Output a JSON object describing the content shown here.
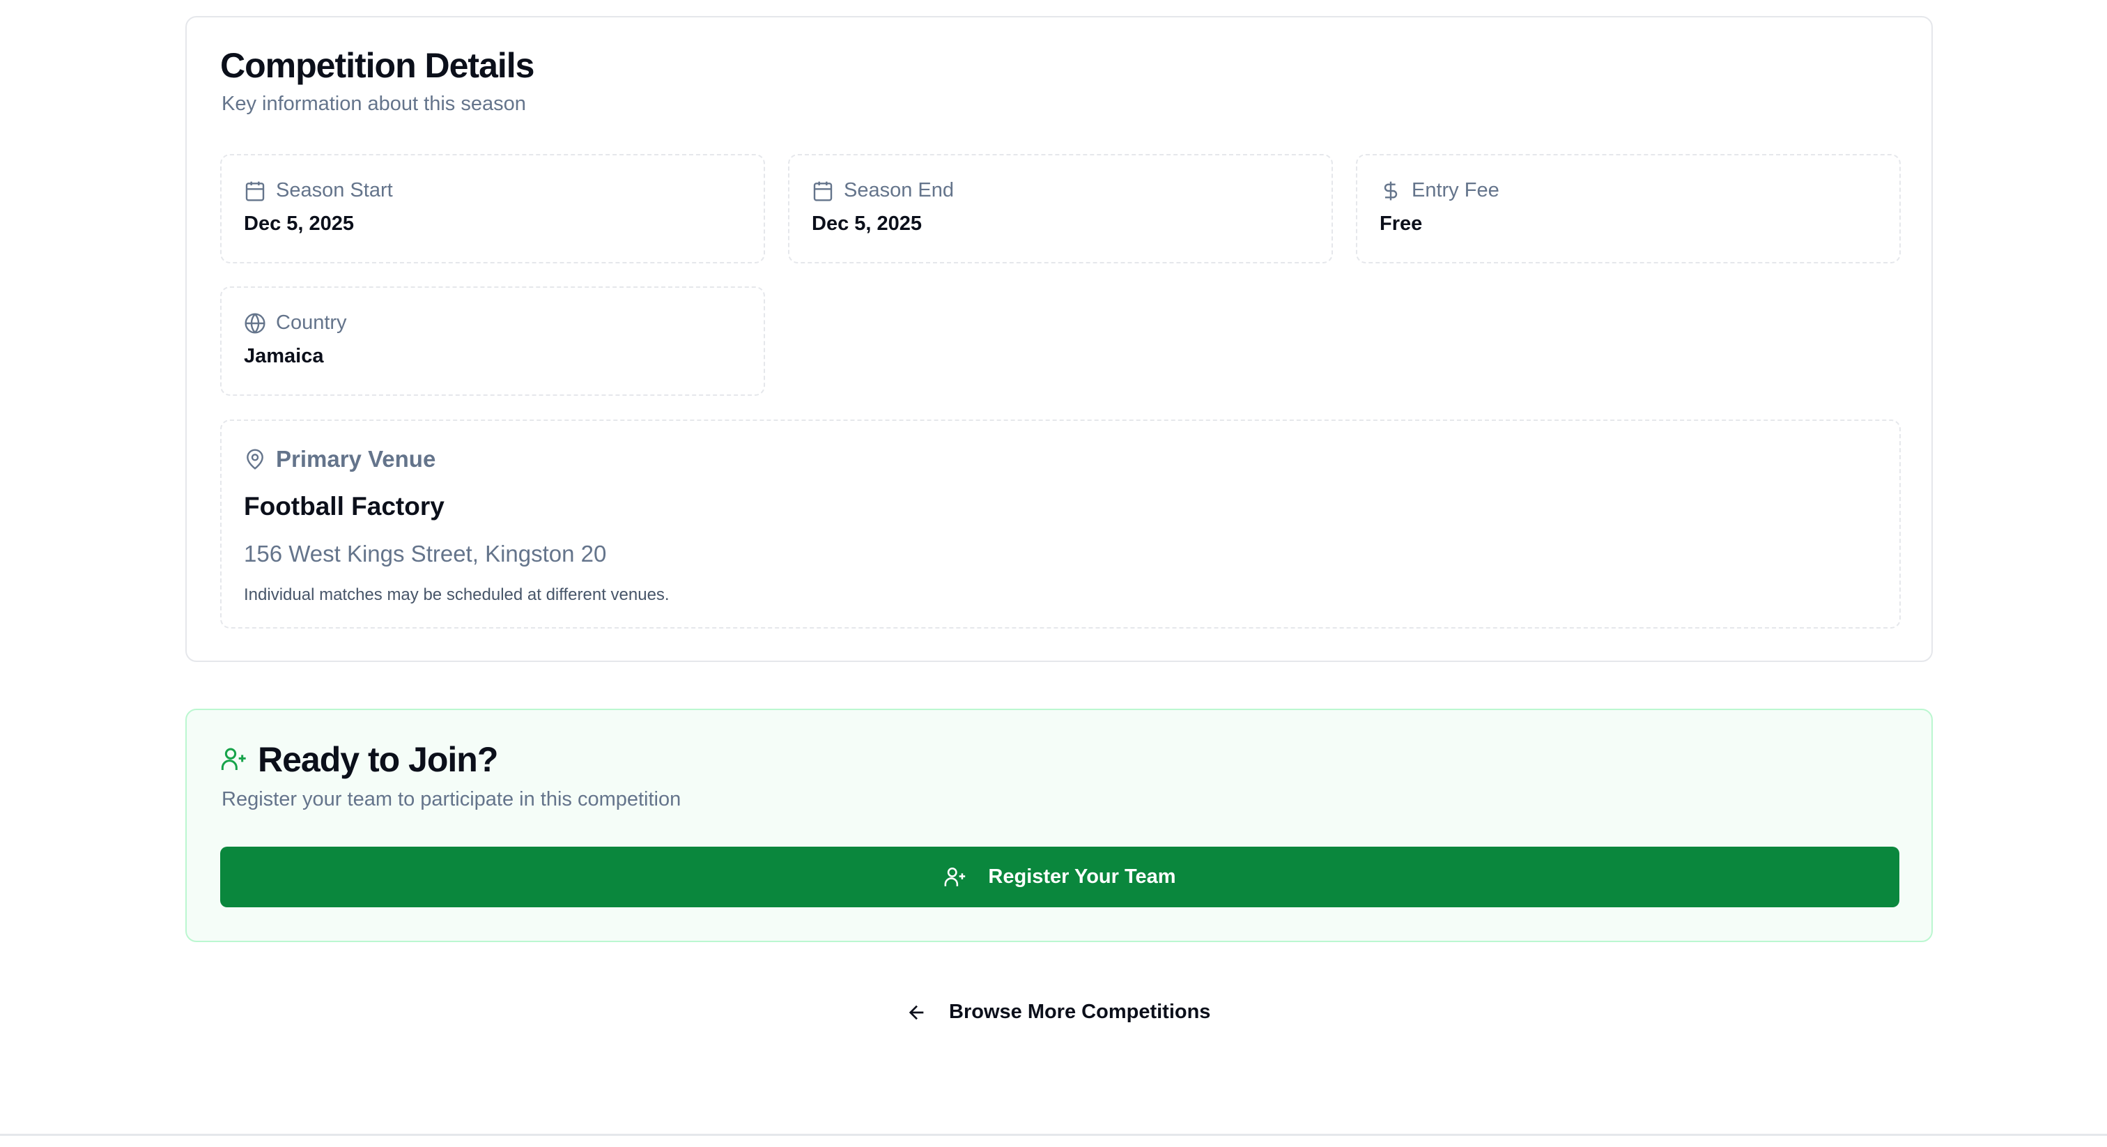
{
  "details": {
    "title": "Competition Details",
    "subtitle": "Key information about this season",
    "items": [
      {
        "icon": "calendar-icon",
        "label": "Season Start",
        "value": "Dec 5, 2025"
      },
      {
        "icon": "calendar-icon",
        "label": "Season End",
        "value": "Dec 5, 2025"
      },
      {
        "icon": "dollar-icon",
        "label": "Entry Fee",
        "value": "Free"
      },
      {
        "icon": "globe-icon",
        "label": "Country",
        "value": "Jamaica"
      }
    ],
    "venue": {
      "icon": "map-pin-icon",
      "label": "Primary Venue",
      "name": "Football Factory",
      "address": "156 West Kings Street, Kingston 20",
      "note": "Individual matches may be scheduled at different venues."
    }
  },
  "join": {
    "icon": "user-plus-icon",
    "title": "Ready to Join?",
    "subtitle": "Register your team to participate in this competition",
    "button_label": "Register Your Team"
  },
  "browse_label": "Browse More Competitions",
  "colors": {
    "accent": "#0a873d",
    "join_bg": "#f5fdf8",
    "join_border": "#bbf7d0",
    "muted": "#64748b"
  }
}
